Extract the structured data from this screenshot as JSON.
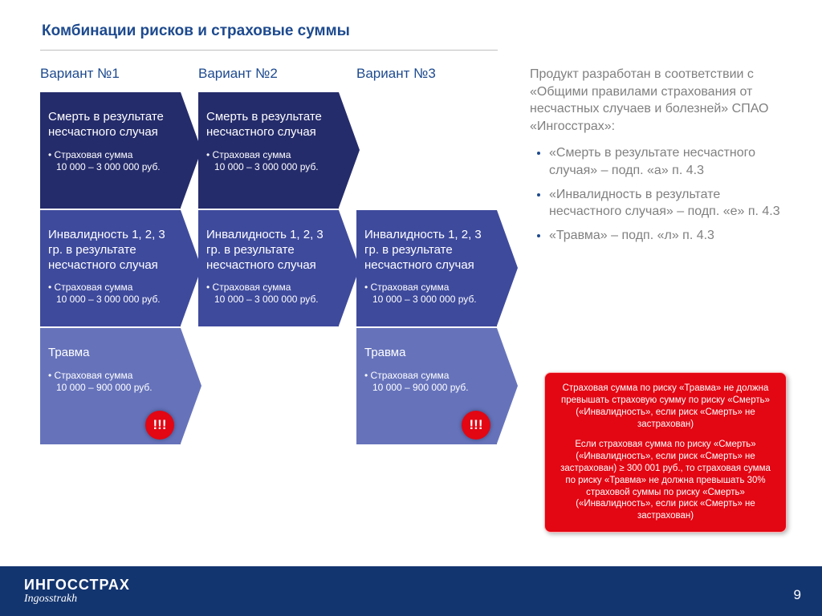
{
  "title": "Комбинации рисков и страховые суммы",
  "columns": [
    {
      "header": "Вариант №1",
      "boxes": [
        {
          "cls": "box-dark",
          "title": "Смерть в результате несчастного случая",
          "bullet1": "Страховая сумма",
          "bullet2": "10 000 – 3 000 000 руб.",
          "excl": false
        },
        {
          "cls": "box-med",
          "title": "Инвалидность 1, 2, 3 гр. в результате несчастного случая",
          "bullet1": "Страховая сумма",
          "bullet2": "10 000 – 3 000 000 руб.",
          "excl": false
        },
        {
          "cls": "box-light",
          "title": "Травма",
          "bullet1": "Страховая сумма",
          "bullet2": "10 000 – 900 000 руб.",
          "excl": true
        }
      ]
    },
    {
      "header": "Вариант №2",
      "boxes": [
        {
          "cls": "box-dark",
          "title": "Смерть в результате несчастного случая",
          "bullet1": "Страховая сумма",
          "bullet2": "10 000 – 3 000 000 руб.",
          "excl": false
        },
        {
          "cls": "box-med",
          "title": "Инвалидность 1, 2, 3 гр. в результате несчастного случая",
          "bullet1": "Страховая сумма",
          "bullet2": "10 000 – 3 000 000 руб.",
          "excl": false
        }
      ]
    },
    {
      "header": "Вариант №3",
      "boxes": [
        {
          "spacer": true
        },
        {
          "cls": "box-med",
          "title": "Инвалидность 1, 2, 3 гр. в результате несчастного случая",
          "bullet1": "Страховая сумма",
          "bullet2": "10 000 – 3 000 000 руб.",
          "excl": false
        },
        {
          "cls": "box-light",
          "title": "Травма",
          "bullet1": "Страховая сумма",
          "bullet2": "10 000 – 900 000 руб.",
          "excl": true
        }
      ]
    }
  ],
  "side": {
    "intro": "Продукт разработан в соответствии с «Общими правилами страхования от несчастных случаев и болезней» СПАО «Ингосстрах»:",
    "items": [
      "«Смерть в результате несчастного случая» – подп. «а» п. 4.3",
      "«Инвалидность в результате несчастного случая» – подп. «е» п. 4.3",
      "«Травма» – подп. «л» п. 4.3"
    ]
  },
  "warning": {
    "p1": "Страховая сумма по риску «Травма» не должна превышать страховую сумму по риску «Смерть» («Инвалидность», если риск «Смерть» не застрахован)",
    "p2": "Если страховая сумма по риску «Смерть» («Инвалидность», если риск «Смерть» не застрахован) ≥ 300 001 руб., то страховая сумма по риску «Травма» не должна превышать 30% страховой суммы по риску «Смерть» («Инвалидность», если риск «Смерть» не застрахован)"
  },
  "footer": {
    "logo_ru": "ИНГОССТРАХ",
    "logo_en": "Ingosstrakh",
    "page": "9"
  },
  "excl_label": "!!!",
  "colors": {
    "title": "#1d4a8f",
    "box_dark": "#252c6b",
    "box_med": "#3e4a9c",
    "box_light": "#6673bb",
    "warning_bg": "#e30613",
    "footer_bg": "#13356f",
    "side_text": "#808080"
  }
}
